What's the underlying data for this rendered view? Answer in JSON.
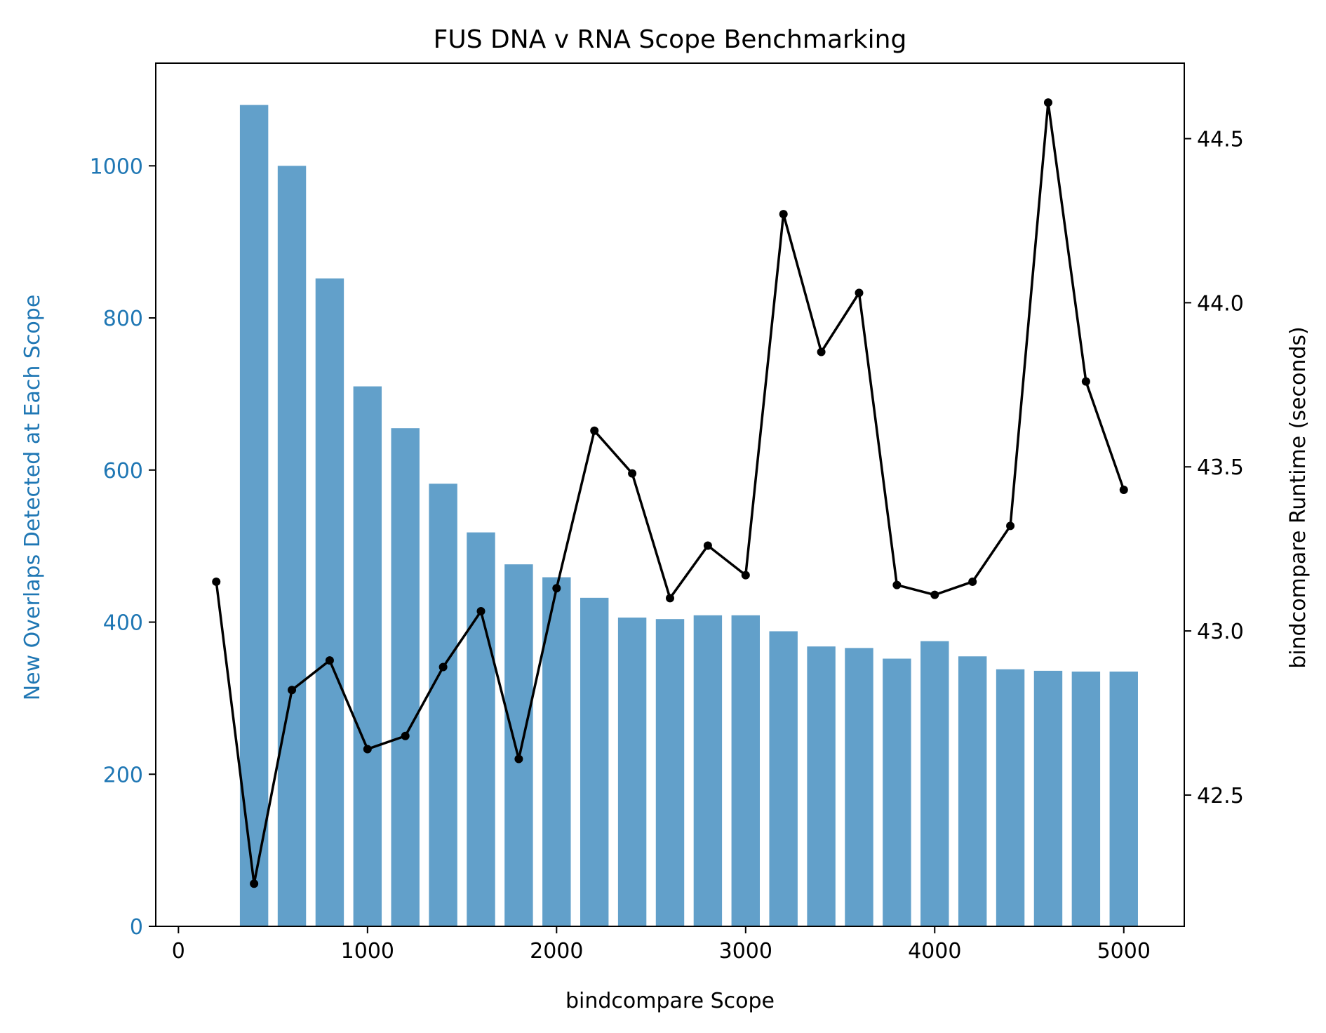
{
  "chart_data": {
    "type": "bar",
    "title": "FUS DNA v RNA Scope Benchmarking",
    "xlabel": "bindcompare Scope",
    "ylabel": "New Overlaps Detected at Each Scope",
    "y2label": "bindcompare Runtime (seconds)",
    "xlim": [
      -120,
      5320
    ],
    "ylim": [
      0,
      1135
    ],
    "y2lim": [
      42.1,
      44.73
    ],
    "xticks": [
      0,
      1000,
      2000,
      3000,
      4000,
      5000
    ],
    "yticks": [
      0,
      200,
      400,
      600,
      800,
      1000
    ],
    "y2ticks": [
      42.5,
      43.0,
      43.5,
      44.0,
      44.5
    ],
    "y2tick_labels": [
      "42.5",
      "43.0",
      "43.5",
      "44.0",
      "44.5"
    ],
    "bar_width": 150,
    "grid": false,
    "legend": "none",
    "colors": {
      "bars": "#1f77b4",
      "line": "#000000",
      "left_axis": "#1f77b4",
      "right_axis": "#000000"
    },
    "bars": {
      "x": [
        200,
        400,
        600,
        800,
        1000,
        1200,
        1400,
        1600,
        1800,
        2000,
        2200,
        2400,
        2600,
        2800,
        3000,
        3200,
        3400,
        3600,
        3800,
        4000,
        4200,
        4400,
        4600,
        4800,
        5000
      ],
      "values": [
        0,
        1080,
        1000,
        852,
        710,
        655,
        582,
        518,
        476,
        459,
        432,
        406,
        404,
        409,
        409,
        388,
        368,
        366,
        352,
        375,
        355,
        338,
        336,
        335,
        335
      ]
    },
    "line": {
      "x": [
        200,
        400,
        600,
        800,
        1000,
        1200,
        1400,
        1600,
        1800,
        2000,
        2200,
        2400,
        2600,
        2800,
        3000,
        3200,
        3400,
        3600,
        3800,
        4000,
        4200,
        4400,
        4600,
        4800,
        5000
      ],
      "values": [
        43.15,
        42.23,
        42.82,
        42.91,
        42.64,
        42.68,
        42.89,
        43.06,
        42.61,
        43.13,
        43.61,
        43.48,
        43.1,
        43.26,
        43.17,
        44.27,
        43.85,
        44.03,
        43.14,
        43.11,
        43.15,
        43.32,
        44.61,
        43.76,
        43.43
      ]
    }
  }
}
